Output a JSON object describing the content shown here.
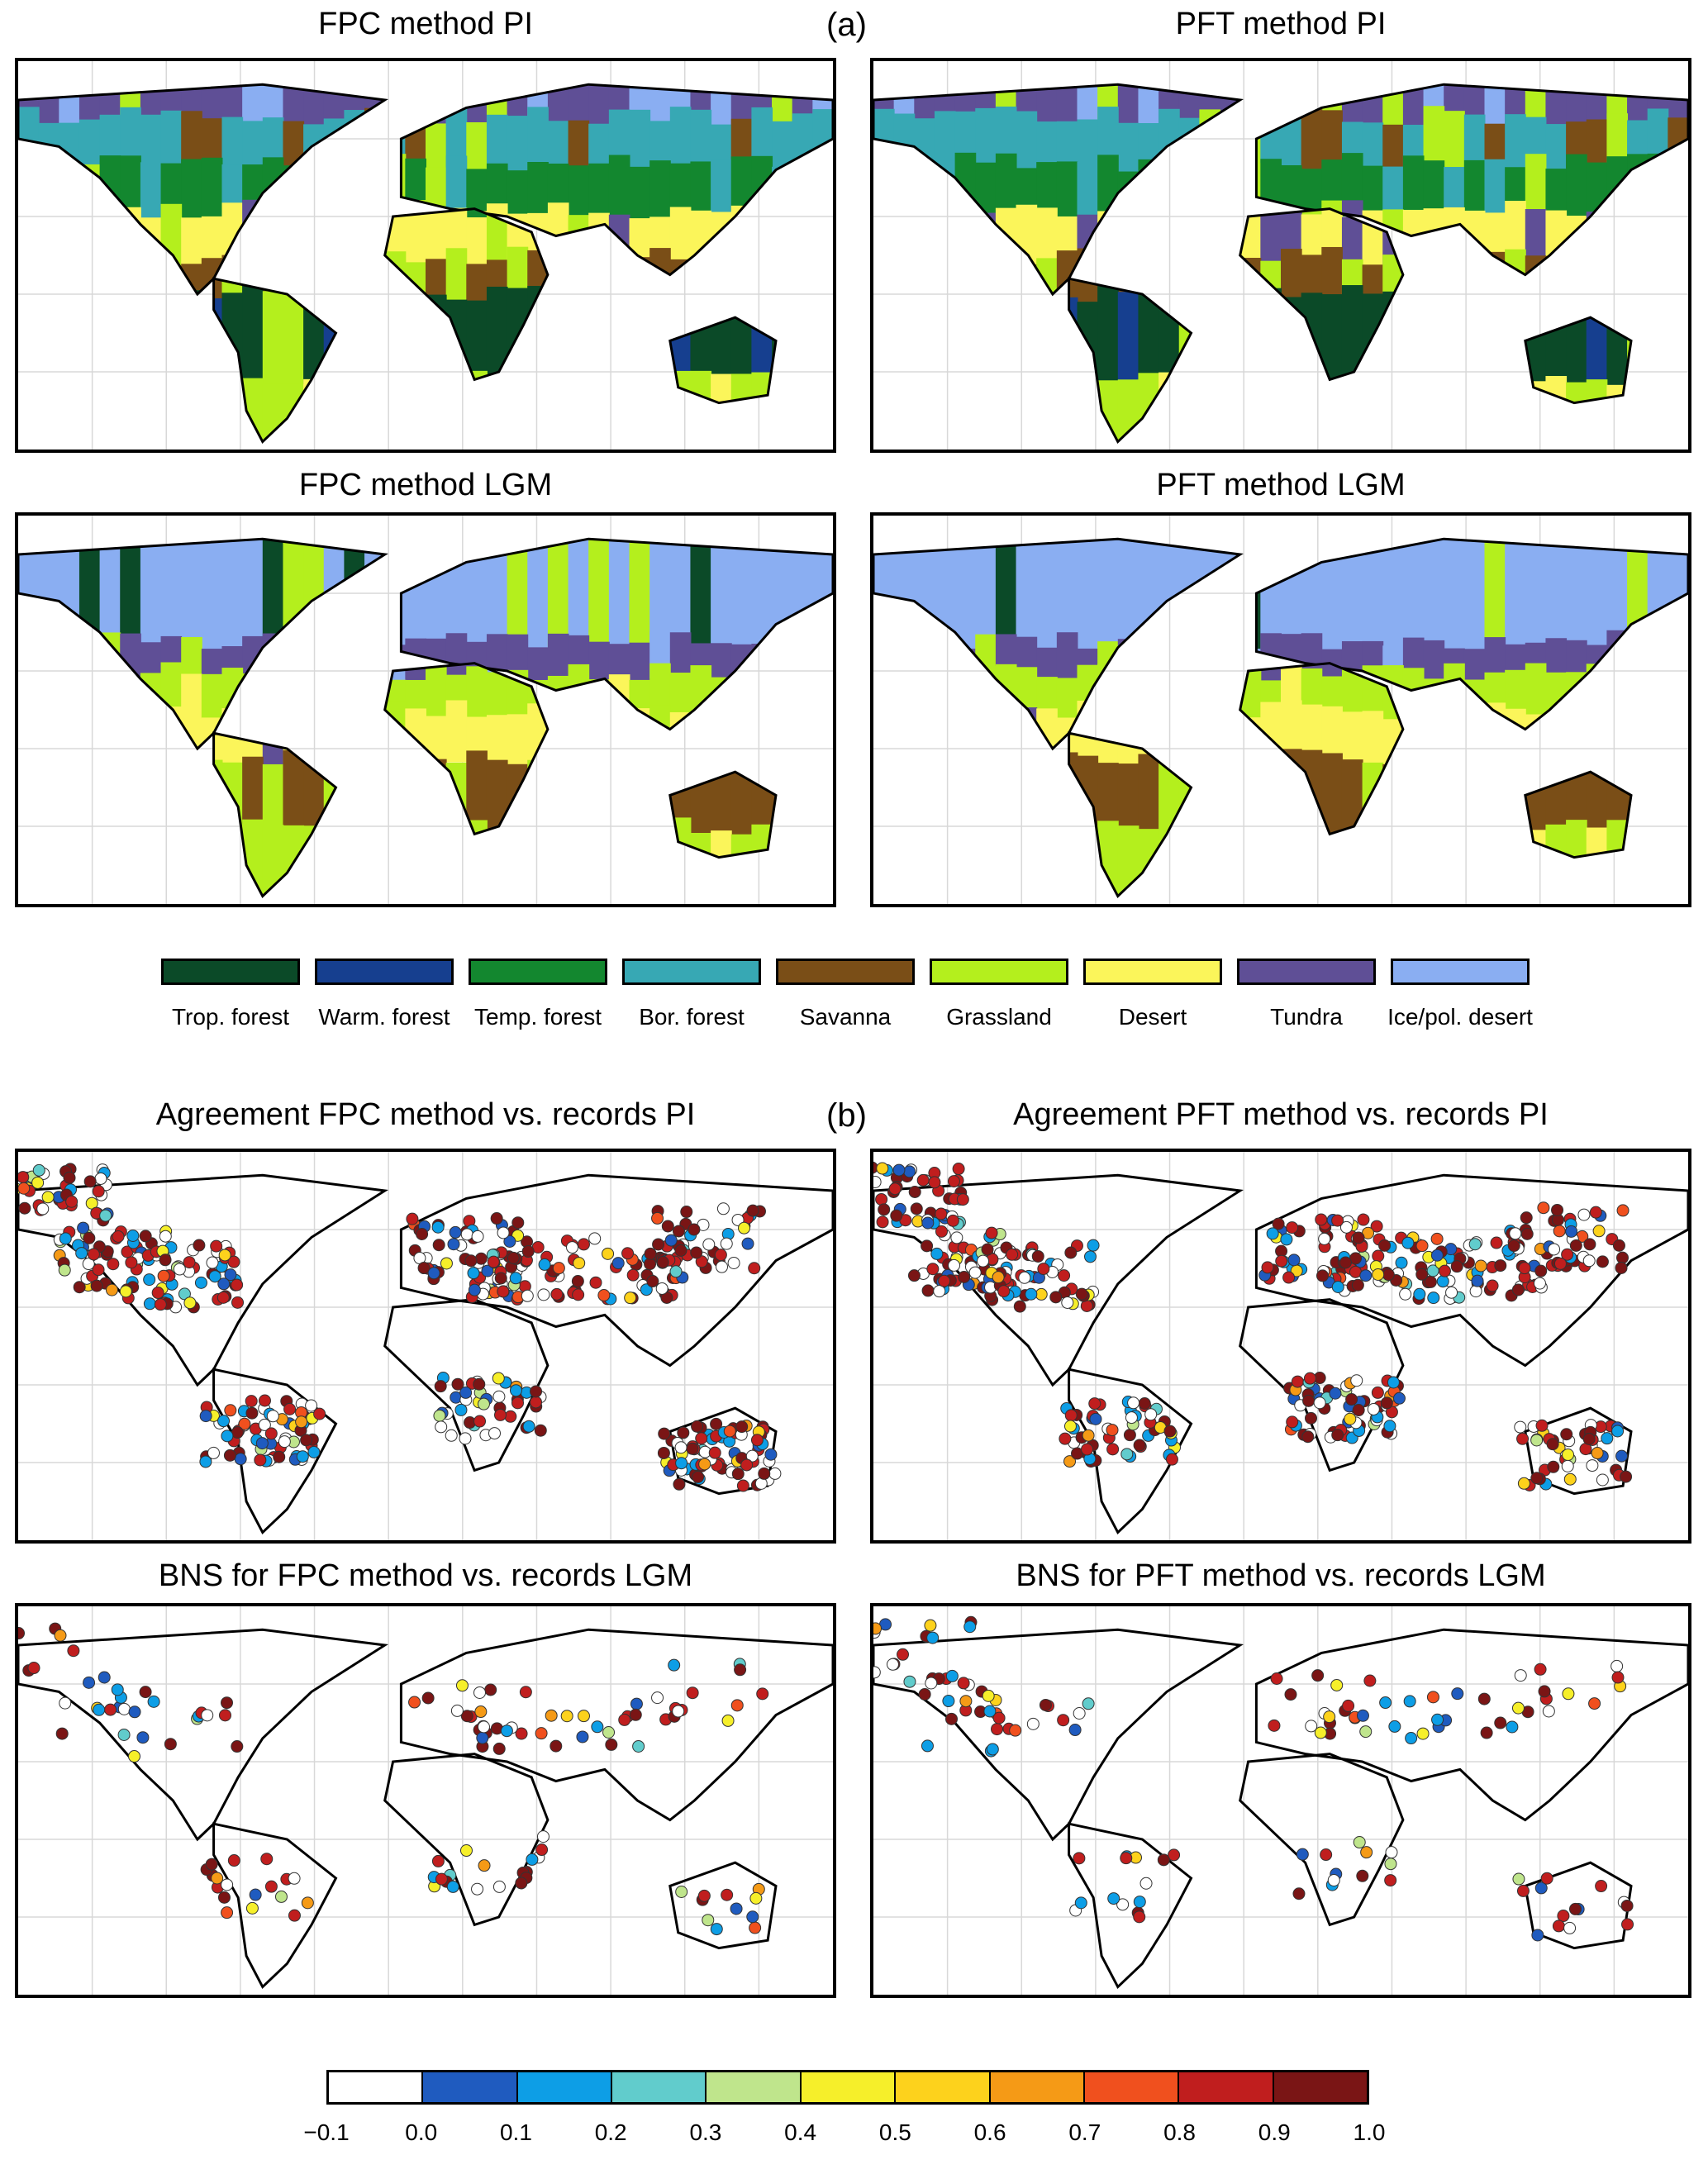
{
  "panel_a": {
    "letter": "(a)",
    "maps": [
      {
        "title": "FPC method PI"
      },
      {
        "title": "PFT method PI"
      },
      {
        "title": "FPC method LGM"
      },
      {
        "title": "PFT method LGM"
      }
    ],
    "legend": [
      {
        "label": "Trop. forest",
        "color": "#0b4a28"
      },
      {
        "label": "Warm. forest",
        "color": "#163f8f"
      },
      {
        "label": "Temp. forest",
        "color": "#13872f"
      },
      {
        "label": "Bor. forest",
        "color": "#37a8b4"
      },
      {
        "label": "Savanna",
        "color": "#7a4e17"
      },
      {
        "label": "Grassland",
        "color": "#b4ef1d"
      },
      {
        "label": "Desert",
        "color": "#fbf55a"
      },
      {
        "label": "Tundra",
        "color": "#5f4f96"
      },
      {
        "label": "Ice/pol. desert",
        "color": "#8aaef2"
      }
    ]
  },
  "panel_b": {
    "letter": "(b)",
    "maps": [
      {
        "title": "Agreement FPC method vs. records PI"
      },
      {
        "title": "Agreement PFT method vs. records PI"
      },
      {
        "title": "BNS for FPC method vs. records LGM"
      },
      {
        "title": "BNS for PFT method vs. records LGM"
      }
    ],
    "colorbar": {
      "colors": [
        "#ffffff",
        "#1f5bbf",
        "#0d9ee6",
        "#61cccc",
        "#bfe58c",
        "#f6ef2a",
        "#fdd21c",
        "#f59a16",
        "#f0501e",
        "#c01e1e",
        "#7a1515"
      ],
      "ticks": [
        "−0.1",
        "0.0",
        "0.1",
        "0.2",
        "0.3",
        "0.4",
        "0.5",
        "0.6",
        "0.7",
        "0.8",
        "0.9",
        "1.0"
      ]
    }
  }
}
